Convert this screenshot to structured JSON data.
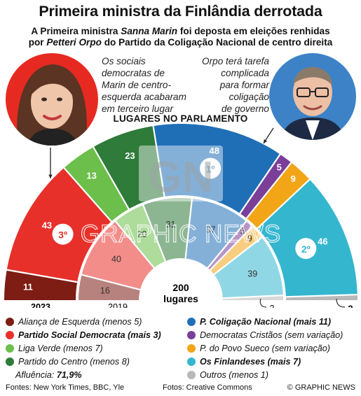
{
  "title": "Primeira ministra da Finlândia derrotada",
  "subtitle_line1": {
    "pre": "A Primeira ministra ",
    "name": "Sanna Marin",
    "post": " foi deposta em eleições renhidas"
  },
  "subtitle_line2": {
    "pre": "por ",
    "name": "Petteri Orpo",
    "post": " do Partido da Coligação Nacional de centro direita"
  },
  "quote_left": [
    "Os sociais",
    "democratas de",
    "Marin de centro-",
    "esquerda acabaram",
    "em terceiro lugar"
  ],
  "quote_right": [
    "Orpo terá tarefa",
    "complicada",
    "para formar",
    "coligação",
    "de governo"
  ],
  "chart_data": {
    "type": "pie",
    "subtype": "semicircle-parliament",
    "title": "LUGARES NO PARLAMENTO",
    "total_label": [
      "200",
      "lugares"
    ],
    "outer_label": "2023",
    "inner_label": "2019",
    "parties": [
      {
        "key": "alianca",
        "color": "#7d1d14",
        "seats_2023": 11,
        "seats_2019": 16
      },
      {
        "key": "sdp",
        "color": "#e8302a",
        "seats_2023": 43,
        "seats_2019": 40
      },
      {
        "key": "verde",
        "color": "#6bbf4a",
        "seats_2023": 13,
        "seats_2019": 20
      },
      {
        "key": "centro",
        "color": "#2e7b3a",
        "seats_2023": 23,
        "seats_2019": 31
      },
      {
        "key": "kok",
        "color": "#1f6fb6",
        "seats_2023": 48,
        "seats_2019": 37
      },
      {
        "key": "kd",
        "color": "#7a3f98",
        "seats_2023": 5,
        "seats_2019": 5
      },
      {
        "key": "rkp",
        "color": "#f2a516",
        "seats_2023": 9,
        "seats_2019": 9
      },
      {
        "key": "ps",
        "color": "#35b6cf",
        "seats_2023": 46,
        "seats_2019": 39
      },
      {
        "key": "outros",
        "color": "#b9b9b9",
        "seats_2023": 2,
        "seats_2019": 3
      }
    ],
    "rank_badges": [
      {
        "party": "kok",
        "label": "1º"
      },
      {
        "party": "ps",
        "label": "2º"
      },
      {
        "party": "sdp",
        "label": "3º"
      }
    ]
  },
  "legend_left": [
    {
      "pre": "",
      "bold": "",
      "text": "Aliança de Esquerda (menos 5)",
      "color": "#7d1d14"
    },
    {
      "pre": "",
      "bold": "Partido Social Democrata (mais 3)",
      "text": "",
      "color": "#e8302a"
    },
    {
      "pre": "",
      "bold": "",
      "text": "Liga Verde (menos 7)",
      "color": "#6bbf4a"
    },
    {
      "pre": "",
      "bold": "",
      "text": "Partido do Centro (menos 8)",
      "color": "#2e7b3a"
    }
  ],
  "legend_right": [
    {
      "bold": "P. Coligação Nacional (mais 11)",
      "text": "",
      "color": "#1f6fb6"
    },
    {
      "bold": "",
      "text": "Democratas Cristãos (sem variação)",
      "color": "#7a3f98"
    },
    {
      "bold": "",
      "text": "P. do Povo Sueco (sem variação)",
      "color": "#f2a516"
    },
    {
      "bold": "Os Finlandeses (mais 7)",
      "text": "",
      "color": "#35b6cf"
    },
    {
      "bold": "",
      "text": "Outros (menos 1)",
      "color": "#b9b9b9"
    }
  ],
  "turnout": {
    "label": "Afluência: ",
    "value": "71,9%"
  },
  "footer": {
    "sources": "Fontes: New York Times, BBC, Yle",
    "photos": "Fotos: Creative Commons",
    "credit": "© GRAPHIC NEWS"
  },
  "watermark": {
    "logo": "GN",
    "text": "GRAPHIC NEWS"
  }
}
